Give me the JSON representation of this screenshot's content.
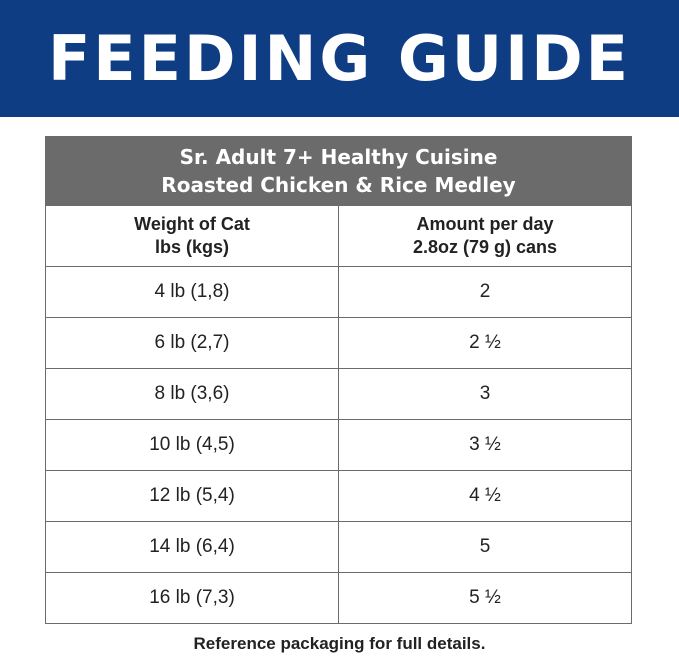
{
  "banner": {
    "title": "FEEDING GUIDE"
  },
  "table": {
    "title_line1": "Sr. Adult 7+ Healthy Cuisine",
    "title_line2": "Roasted Chicken & Rice Medley",
    "col1_line1": "Weight of Cat",
    "col1_line2": "lbs (kgs)",
    "col2_line1": "Amount per day",
    "col2_line2": "2.8oz (79 g) cans",
    "rows": [
      {
        "weight": "4 lb (1,8)",
        "amount": "2"
      },
      {
        "weight": "6 lb (2,7)",
        "amount": "2 ½"
      },
      {
        "weight": "8 lb (3,6)",
        "amount": "3"
      },
      {
        "weight": "10 lb (4,5)",
        "amount": "3 ½"
      },
      {
        "weight": "12 lb (5,4)",
        "amount": "4 ½"
      },
      {
        "weight": "14 lb (6,4)",
        "amount": "5"
      },
      {
        "weight": "16 lb (7,3)",
        "amount": "5 ½"
      }
    ]
  },
  "footnote": "Reference packaging for full details.",
  "colors": {
    "banner": "#0f3d84",
    "table_header": "#6b6b6b",
    "border": "#6b6b6b",
    "text": "#222222"
  }
}
